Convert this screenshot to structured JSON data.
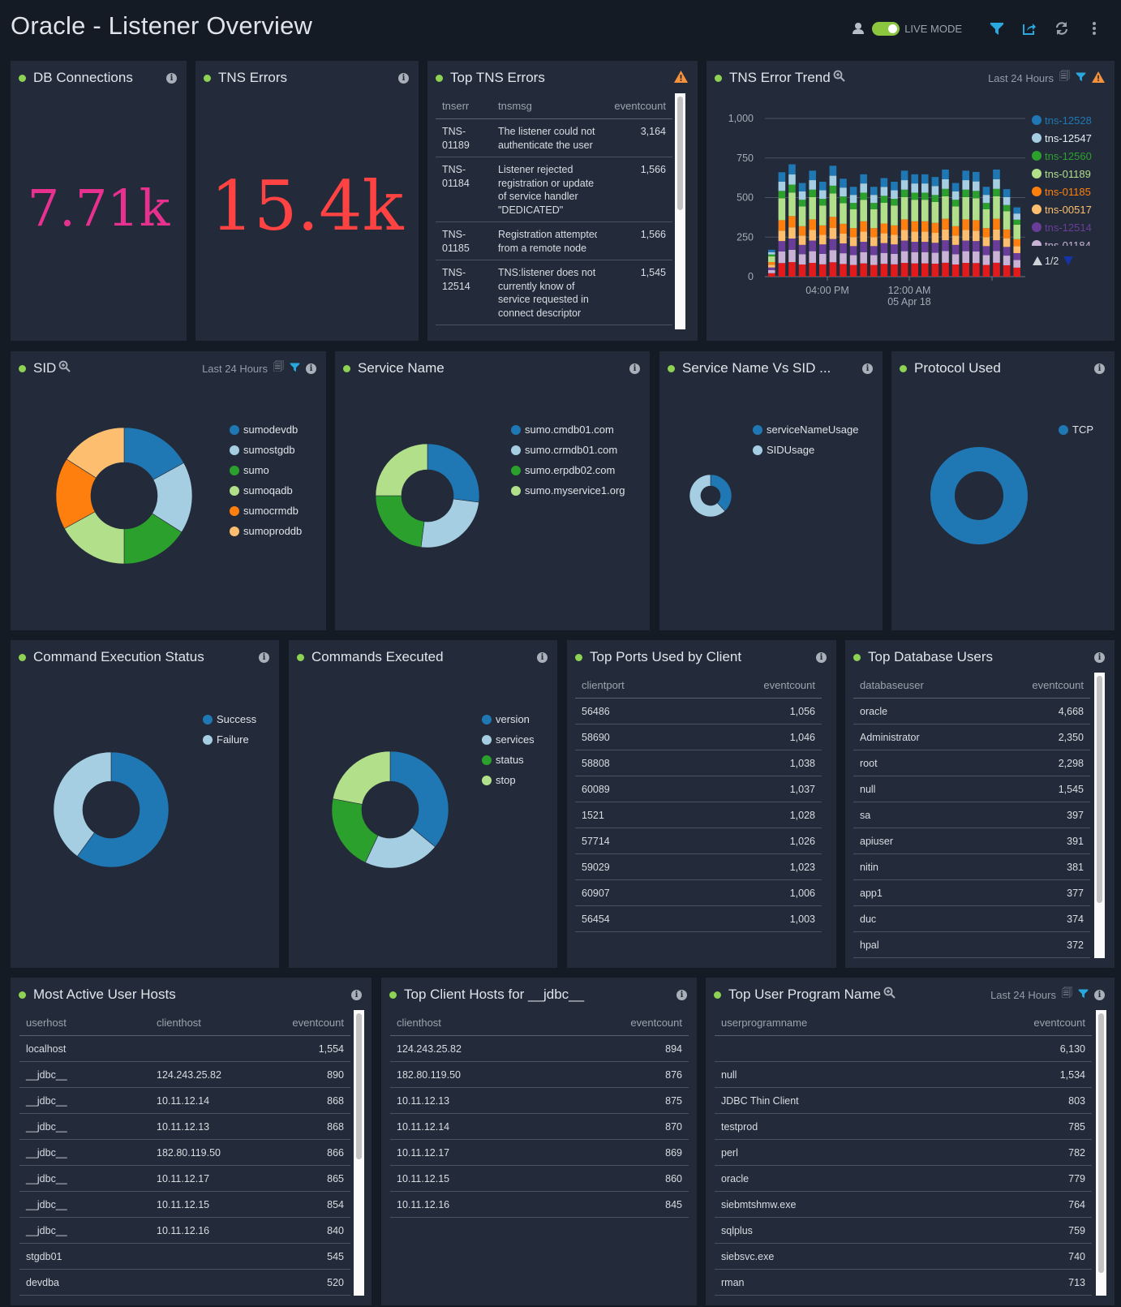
{
  "header": {
    "title": "Oracle - Listener Overview",
    "live_mode": "LIVE MODE",
    "live_mode_on": true
  },
  "colors": {
    "panel": "#232b3a",
    "background": "#141b24",
    "accent_green": "#8ed254",
    "filter_blue": "#29a8e0",
    "warning_orange": "#f7923a"
  },
  "db_connections": {
    "title": "DB Connections",
    "value": "7.71k",
    "color": "#e8318f"
  },
  "tns_errors": {
    "title": "TNS Errors",
    "value": "15.4k",
    "color": "#ff4242"
  },
  "top_tns_errors": {
    "title": "Top TNS Errors",
    "columns": [
      "tnserr",
      "tnsmsg",
      "eventcount"
    ],
    "rows": [
      [
        "TNS-\n01189",
        "The listener could not\nauthenticate the user",
        "3,164"
      ],
      [
        "TNS-\n01184",
        "Listener rejected\nregistration or update\nof service handler\n\"DEDICATED\"",
        "1,566"
      ],
      [
        "TNS-\n01185",
        "Registration attempted\nfrom a remote node",
        "1,566"
      ],
      [
        "TNS-\n12514",
        "TNS:listener does not\ncurrently know of\nservice requested in\nconnect descriptor",
        "1,545"
      ]
    ]
  },
  "tns_error_trend": {
    "title": "TNS Error Trend",
    "time_range": "Last 24 Hours",
    "legend_page": "1/2",
    "chart_data": {
      "type": "bar",
      "stacked": true,
      "ylim": [
        0,
        1000
      ],
      "yticks": [
        "0",
        "250",
        "500",
        "750",
        "1,000"
      ],
      "grid": true,
      "legend": "right",
      "xtick_labels": [
        "04:00 PM",
        "12:00 AM\n05 Apr 18"
      ],
      "series": [
        {
          "name": "tns-12528",
          "color": "#1f78b4",
          "values": [
            15,
            59,
            64,
            53,
            60,
            54,
            63,
            56,
            51,
            58,
            51,
            56,
            54,
            60,
            58,
            58,
            57,
            61,
            53,
            60,
            60,
            51,
            61,
            50,
            39
          ]
        },
        {
          "name": "tns-12547",
          "color": "#a6cee3",
          "values": [
            15,
            59,
            64,
            53,
            60,
            54,
            63,
            56,
            51,
            58,
            51,
            56,
            54,
            60,
            58,
            58,
            57,
            61,
            53,
            60,
            60,
            51,
            61,
            50,
            39
          ]
        },
        {
          "name": "tns-12560",
          "color": "#2ca02c",
          "values": [
            12,
            46,
            50,
            42,
            47,
            42,
            49,
            43,
            40,
            45,
            40,
            44,
            42,
            47,
            45,
            45,
            44,
            47,
            42,
            47,
            46,
            40,
            47,
            39,
            31
          ]
        },
        {
          "name": "tns-01189",
          "color": "#b2df8a",
          "values": [
            36,
            139,
            149,
            125,
            141,
            126,
            148,
            130,
            119,
            136,
            119,
            131,
            126,
            141,
            136,
            136,
            132,
            142,
            125,
            141,
            139,
            119,
            142,
            116,
            92
          ]
        },
        {
          "name": "tns-01185",
          "color": "#ff7f0e",
          "values": [
            17,
            66,
            71,
            59,
            67,
            60,
            70,
            62,
            57,
            65,
            57,
            62,
            60,
            67,
            65,
            65,
            63,
            68,
            59,
            67,
            66,
            57,
            68,
            55,
            44
          ]
        },
        {
          "name": "tns-00517",
          "color": "#fdbf6f",
          "values": [
            17,
            66,
            71,
            59,
            67,
            60,
            70,
            62,
            57,
            65,
            57,
            62,
            60,
            67,
            65,
            65,
            63,
            68,
            59,
            67,
            66,
            57,
            68,
            55,
            44
          ]
        },
        {
          "name": "tns-12514",
          "color": "#6a3d9a",
          "values": [
            17,
            66,
            71,
            59,
            67,
            60,
            70,
            62,
            57,
            65,
            57,
            62,
            60,
            67,
            65,
            65,
            63,
            68,
            59,
            67,
            66,
            57,
            68,
            55,
            44
          ]
        },
        {
          "name": "tns-01184",
          "color": "#cab2d6",
          "values": [
            19,
            73,
            78,
            65,
            74,
            66,
            77,
            68,
            62,
            71,
            62,
            69,
            66,
            74,
            71,
            71,
            69,
            74,
            65,
            74,
            73,
            62,
            74,
            61,
            48
          ]
        },
        {
          "color": "#e31a1c",
          "values": [
            22,
            86,
            92,
            77,
            87,
            78,
            91,
            80,
            74,
            84,
            74,
            81,
            78,
            87,
            84,
            84,
            82,
            88,
            77,
            87,
            86,
            74,
            88,
            72,
            57
          ]
        }
      ]
    }
  },
  "sid": {
    "title": "SID",
    "time_range": "Last 24 Hours",
    "chart_data": {
      "type": "pie",
      "donut": true,
      "labels": [
        "sumodevdb",
        "sumostgdb",
        "sumo",
        "sumoqadb",
        "sumocrmdb",
        "sumoproddb"
      ],
      "values": [
        17,
        17,
        16,
        17,
        17,
        16
      ],
      "colors": [
        "#1f78b4",
        "#a6cee3",
        "#2ca02c",
        "#b2df8a",
        "#ff7f0e",
        "#fdbf6f"
      ]
    }
  },
  "service_name": {
    "title": "Service Name",
    "chart_data": {
      "type": "pie",
      "donut": true,
      "labels": [
        "sumo.cmdb01.com",
        "sumo.crmdb01.com",
        "sumo.erpdb02.com",
        "sumo.myservice1.org"
      ],
      "values": [
        27,
        25,
        23,
        25
      ],
      "colors": [
        "#1f78b4",
        "#a6cee3",
        "#2ca02c",
        "#b2df8a"
      ]
    }
  },
  "service_vs_sid": {
    "title": "Service Name Vs SID ...",
    "chart_data": {
      "type": "pie",
      "donut": true,
      "labels": [
        "serviceNameUsage",
        "SIDUsage"
      ],
      "values": [
        38,
        62
      ],
      "colors": [
        "#1f78b4",
        "#a6cee3"
      ]
    }
  },
  "protocol": {
    "title": "Protocol Used",
    "chart_data": {
      "type": "pie",
      "donut": true,
      "labels": [
        "TCP"
      ],
      "values": [
        100
      ],
      "colors": [
        "#1f78b4"
      ]
    }
  },
  "command_status": {
    "title": "Command Execution Status",
    "chart_data": {
      "type": "pie",
      "donut": true,
      "labels": [
        "Success",
        "Failure"
      ],
      "values": [
        60,
        40
      ],
      "colors": [
        "#1f78b4",
        "#a6cee3"
      ]
    }
  },
  "commands_executed": {
    "title": "Commands Executed",
    "chart_data": {
      "type": "pie",
      "donut": true,
      "labels": [
        "version",
        "services",
        "status",
        "stop"
      ],
      "values": [
        36,
        21,
        21,
        22
      ],
      "colors": [
        "#1f78b4",
        "#a6cee3",
        "#2ca02c",
        "#b2df8a"
      ]
    }
  },
  "top_ports": {
    "title": "Top Ports Used by Client",
    "columns": [
      "clientport",
      "eventcount"
    ],
    "rows": [
      [
        "56486",
        "1,056"
      ],
      [
        "58690",
        "1,046"
      ],
      [
        "58808",
        "1,038"
      ],
      [
        "60089",
        "1,037"
      ],
      [
        "1521",
        "1,028"
      ],
      [
        "57714",
        "1,026"
      ],
      [
        "59029",
        "1,023"
      ],
      [
        "60907",
        "1,006"
      ],
      [
        "56454",
        "1,003"
      ]
    ]
  },
  "top_db_users": {
    "title": "Top Database Users",
    "columns": [
      "databaseuser",
      "eventcount"
    ],
    "rows": [
      [
        "oracle",
        "4,668"
      ],
      [
        "Administrator",
        "2,350"
      ],
      [
        "root",
        "2,298"
      ],
      [
        "null",
        "1,545"
      ],
      [
        "sa",
        "397"
      ],
      [
        "apiuser",
        "391"
      ],
      [
        "nitin",
        "381"
      ],
      [
        "app1",
        "377"
      ],
      [
        "duc",
        "374"
      ],
      [
        "hpal",
        "372"
      ]
    ]
  },
  "active_user_hosts": {
    "title": "Most Active User Hosts",
    "columns": [
      "userhost",
      "clienthost",
      "eventcount"
    ],
    "rows": [
      [
        "localhost",
        "",
        "1,554"
      ],
      [
        "__jdbc__",
        "124.243.25.82",
        "890"
      ],
      [
        "__jdbc__",
        "10.11.12.14",
        "868"
      ],
      [
        "__jdbc__",
        "10.11.12.13",
        "868"
      ],
      [
        "__jdbc__",
        "182.80.119.50",
        "866"
      ],
      [
        "__jdbc__",
        "10.11.12.17",
        "865"
      ],
      [
        "__jdbc__",
        "10.11.12.15",
        "854"
      ],
      [
        "__jdbc__",
        "10.11.12.16",
        "840"
      ],
      [
        "stgdb01",
        "",
        "545"
      ],
      [
        "devdba",
        "",
        "520"
      ]
    ]
  },
  "jdbc_client_hosts": {
    "title": "Top Client Hosts for __jdbc__",
    "columns": [
      "clienthost",
      "eventcount"
    ],
    "rows": [
      [
        "124.243.25.82",
        "894"
      ],
      [
        "182.80.119.50",
        "876"
      ],
      [
        "10.11.12.13",
        "875"
      ],
      [
        "10.11.12.14",
        "870"
      ],
      [
        "10.11.12.17",
        "869"
      ],
      [
        "10.11.12.15",
        "860"
      ],
      [
        "10.11.12.16",
        "845"
      ]
    ]
  },
  "user_program": {
    "title": "Top User Program Name",
    "time_range": "Last 24 Hours",
    "columns": [
      "userprogramname",
      "eventcount"
    ],
    "rows": [
      [
        "",
        "6,130"
      ],
      [
        "null",
        "1,534"
      ],
      [
        "JDBC Thin Client",
        "803"
      ],
      [
        "testprod",
        "785"
      ],
      [
        "perl",
        "782"
      ],
      [
        "oracle",
        "779"
      ],
      [
        "siebmtshmw.exe",
        "764"
      ],
      [
        "sqlplus",
        "759"
      ],
      [
        "siebsvc.exe",
        "740"
      ],
      [
        "rman",
        "713"
      ]
    ]
  }
}
